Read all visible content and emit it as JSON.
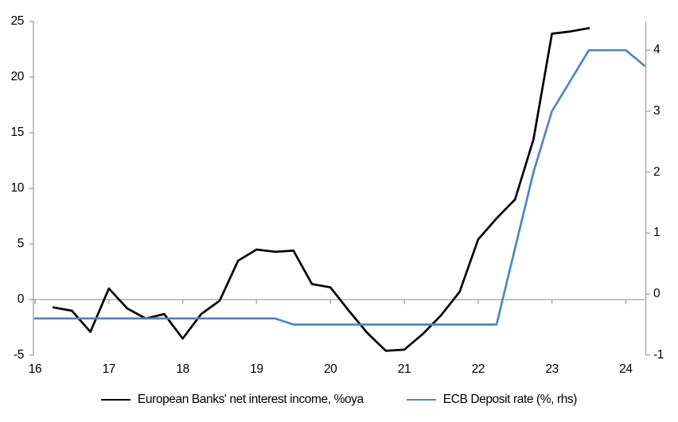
{
  "chart_data": {
    "type": "line",
    "x_axis": {
      "tick_labels": [
        "16",
        "17",
        "18",
        "19",
        "20",
        "21",
        "22",
        "23",
        "24"
      ],
      "tick_values": [
        16,
        17,
        18,
        19,
        20,
        21,
        22,
        23,
        24
      ],
      "range": [
        16,
        24.27
      ]
    },
    "left_axis": {
      "tick_labels": [
        "25",
        "20",
        "15",
        "10",
        "5",
        "0",
        "-5"
      ],
      "tick_values": [
        25,
        20,
        15,
        10,
        5,
        0,
        -5
      ],
      "range": [
        -5,
        25
      ]
    },
    "right_axis": {
      "tick_labels": [
        "4",
        "3",
        "2",
        "1",
        "0",
        "-1"
      ],
      "tick_values": [
        4,
        3,
        2,
        1,
        0,
        -1
      ],
      "range": [
        -1,
        4.48
      ]
    },
    "grid": "zero-line-only",
    "legend_position": "bottom",
    "series": [
      {
        "name": "European Banks' net interest income, %oya",
        "axis": "left",
        "color": "#000000",
        "x": [
          16.25,
          16.5,
          16.75,
          17,
          17.25,
          17.5,
          17.75,
          18,
          18.25,
          18.5,
          18.75,
          19,
          19.25,
          19.5,
          19.75,
          20,
          20.25,
          20.5,
          20.75,
          21,
          21.25,
          21.5,
          21.75,
          22,
          22.25,
          22.5,
          22.75,
          23,
          23.25,
          23.5
        ],
        "values": [
          -0.7,
          -1.0,
          -2.9,
          1.0,
          -0.8,
          -1.7,
          -1.3,
          -3.5,
          -1.3,
          -0.1,
          3.5,
          4.5,
          4.3,
          4.4,
          1.4,
          1.1,
          -1.0,
          -3.0,
          -4.6,
          -4.5,
          -3.1,
          -1.4,
          0.7,
          5.4,
          7.3,
          9.0,
          14.4,
          23.9,
          24.1,
          24.4
        ]
      },
      {
        "name": "ECB Deposit rate (%, rhs)",
        "axis": "right",
        "color": "#4e86c2",
        "x": [
          16,
          16.25,
          16.5,
          16.75,
          17,
          17.25,
          17.5,
          17.75,
          18,
          18.25,
          18.5,
          18.75,
          19,
          19.25,
          19.5,
          19.75,
          20,
          20.25,
          20.5,
          20.75,
          21,
          21.25,
          21.5,
          21.75,
          22,
          22.25,
          22.5,
          22.75,
          23,
          23.25,
          23.5,
          23.75,
          24,
          24.25
        ],
        "values": [
          -0.4,
          -0.4,
          -0.4,
          -0.4,
          -0.4,
          -0.4,
          -0.4,
          -0.4,
          -0.4,
          -0.4,
          -0.4,
          -0.4,
          -0.4,
          -0.4,
          -0.5,
          -0.5,
          -0.5,
          -0.5,
          -0.5,
          -0.5,
          -0.5,
          -0.5,
          -0.5,
          -0.5,
          -0.5,
          -0.5,
          0.75,
          2.0,
          3.0,
          3.5,
          4.0,
          4.0,
          4.0,
          3.75
        ]
      }
    ],
    "axis_color": "#a6a6a6"
  }
}
